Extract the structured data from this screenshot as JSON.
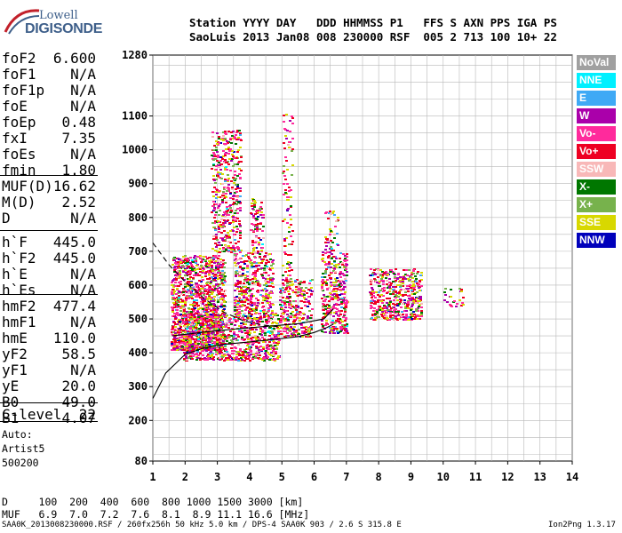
{
  "logo": {
    "top": "Lowell",
    "main": "DIGISONDE"
  },
  "header": {
    "line1": "Station YYYY DAY   DDD HHMMSS P1   FFS S AXN PPS IGA PS",
    "line2": "SaoLuis 2013 Jan08 008 230000 RSF  005 2 713 100 10+ 22"
  },
  "params": [
    {
      "k": "foF2",
      "v": "6.600"
    },
    {
      "k": "foF1",
      "v": "N/A"
    },
    {
      "k": "foF1p",
      "v": "N/A"
    },
    {
      "k": "foE",
      "v": "N/A"
    },
    {
      "k": "foEp",
      "v": "0.48"
    },
    {
      "k": "fxI",
      "v": "7.35"
    },
    {
      "k": "foEs",
      "v": "N/A"
    },
    {
      "k": "fmin",
      "v": "1.80"
    },
    {
      "k": "MUF(D)",
      "v": "16.62"
    },
    {
      "k": "M(D)",
      "v": "2.52"
    },
    {
      "k": "D",
      "v": "N/A"
    },
    {
      "k": "h`F",
      "v": "445.0"
    },
    {
      "k": "h`F2",
      "v": "445.0"
    },
    {
      "k": "h`E",
      "v": "N/A"
    },
    {
      "k": "h`Es",
      "v": "N/A"
    },
    {
      "k": "hmF2",
      "v": "477.4"
    },
    {
      "k": "hmF1",
      "v": "N/A"
    },
    {
      "k": "hmE",
      "v": "110.0"
    },
    {
      "k": "yF2",
      "v": "58.5"
    },
    {
      "k": "yF1",
      "v": "N/A"
    },
    {
      "k": "yE",
      "v": "20.0"
    },
    {
      "k": "B0",
      "v": "49.0"
    },
    {
      "k": "B1",
      "v": "4.07"
    },
    {
      "k": "C-level",
      "v": "22"
    }
  ],
  "auto": {
    "line1": "Auto:",
    "line2": "Artist5",
    "line3": "500200"
  },
  "muf_table": {
    "d_row": "D     100  200  400  600  800 1000 1500 3000 [km]",
    "muf_row": "MUF   6.9  7.0  7.2  7.6  8.1  8.9 11.1 16.6 [MHz]"
  },
  "footer": {
    "left": "SAA0K_2013008230000.RSF / 260fx256h 50 kHz 5.0 km / DPS-4 SAA0K 903 / 2.6 S 315.8 E",
    "right": "Ion2Png 1.3.17"
  },
  "legend": [
    {
      "label": "NoVal",
      "bg": "#a0a0a0",
      "fg": "#ffffff"
    },
    {
      "label": "NNE",
      "bg": "#00f0ff",
      "fg": "#ffffff"
    },
    {
      "label": "E",
      "bg": "#3fa9f5",
      "fg": "#ffffff"
    },
    {
      "label": "W",
      "bg": "#aa00aa",
      "fg": "#ffffff"
    },
    {
      "label": "Vo-",
      "bg": "#ff2a9c",
      "fg": "#ffffff"
    },
    {
      "label": "Vo+",
      "bg": "#ee0022",
      "fg": "#ffffff"
    },
    {
      "label": "SSW",
      "bg": "#f8b8b8",
      "fg": "#ffffff"
    },
    {
      "label": "X-",
      "bg": "#007700",
      "fg": "#ffffff"
    },
    {
      "label": "X+",
      "bg": "#77b24c",
      "fg": "#ffffff"
    },
    {
      "label": "SSE",
      "bg": "#d8d800",
      "fg": "#ffffff"
    },
    {
      "label": "NNW",
      "bg": "#0000bb",
      "fg": "#ffffff"
    }
  ],
  "chart_data": {
    "type": "scatter",
    "title": "",
    "xlabel": "",
    "ylabel": "",
    "xlim": [
      1,
      14
    ],
    "ylim": [
      80,
      1280
    ],
    "x_ticks": [
      1,
      2,
      3,
      4,
      5,
      6,
      7,
      8,
      9,
      10,
      11,
      12,
      13,
      14
    ],
    "y_ticks": [
      80,
      200,
      300,
      400,
      500,
      600,
      700,
      800,
      900,
      1000,
      1100,
      1280
    ],
    "grid": true,
    "echo_clusters": [
      {
        "f": [
          1.55,
          3.2
        ],
        "h": [
          410,
          690
        ],
        "n": 1400
      },
      {
        "f": [
          1.9,
          4.9
        ],
        "h": [
          380,
          520
        ],
        "n": 900
      },
      {
        "f": [
          2.8,
          3.7
        ],
        "h": [
          700,
          1060
        ],
        "n": 450
      },
      {
        "f": [
          3.5,
          4.7
        ],
        "h": [
          500,
          700
        ],
        "n": 450
      },
      {
        "f": [
          4.0,
          4.4
        ],
        "h": [
          700,
          860
        ],
        "n": 90
      },
      {
        "f": [
          4.9,
          5.9
        ],
        "h": [
          450,
          620
        ],
        "n": 320
      },
      {
        "f": [
          5.0,
          5.3
        ],
        "h": [
          620,
          1120
        ],
        "n": 90
      },
      {
        "f": [
          6.2,
          7.0
        ],
        "h": [
          460,
          700
        ],
        "n": 360
      },
      {
        "f": [
          6.3,
          6.7
        ],
        "h": [
          700,
          820
        ],
        "n": 40
      },
      {
        "f": [
          7.7,
          9.3
        ],
        "h": [
          500,
          650
        ],
        "n": 520
      },
      {
        "f": [
          10.0,
          10.6
        ],
        "h": [
          540,
          600
        ],
        "n": 25
      }
    ],
    "lines": [
      {
        "name": "",
        "style": "solid",
        "x": [
          1.0,
          1.4,
          2.0,
          2.6,
          3.2,
          4.0,
          4.8,
          5.5,
          6.0,
          6.4,
          6.6
        ],
        "y": [
          265,
          340,
          395,
          415,
          425,
          432,
          440,
          448,
          460,
          475,
          485
        ]
      },
      {
        "name": "",
        "style": "solid",
        "x": [
          1.6,
          2.5,
          3.5,
          4.5,
          5.5,
          6.3,
          6.6
        ],
        "y": [
          450,
          460,
          470,
          478,
          486,
          500,
          530
        ]
      },
      {
        "name": "",
        "style": "dashed",
        "x": [
          1.0,
          1.5,
          2.0,
          2.6,
          3.2,
          3.8,
          4.4,
          5.0
        ],
        "y": [
          725,
          660,
          610,
          560,
          520,
          495,
          482,
          476
        ]
      }
    ]
  }
}
